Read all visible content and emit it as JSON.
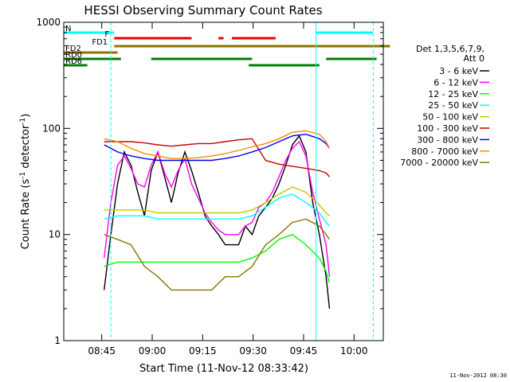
{
  "chart_data": {
    "type": "line",
    "title": "HESSI Observing Summary Count Rates",
    "xlabel": "Start Time (11-Nov-12 08:33:42)",
    "ylabel_main": "Count Rate (s",
    "ylabel_sup1": "-1",
    "ylabel_mid": " detector",
    "ylabel_sup2": "-1",
    "ylabel_end": ")",
    "y_scale": "log",
    "ylim": [
      1,
      1000
    ],
    "xlim_minutes": [
      0,
      95
    ],
    "x_ticks": [
      {
        "minute": 11.3,
        "label": "08:45"
      },
      {
        "minute": 26.3,
        "label": "09:00"
      },
      {
        "minute": 41.3,
        "label": "09:15"
      },
      {
        "minute": 56.3,
        "label": "09:30"
      },
      {
        "minute": 71.3,
        "label": "09:45"
      },
      {
        "minute": 86.3,
        "label": "10:00"
      }
    ],
    "y_ticks": [
      {
        "value": 1,
        "label": "1"
      },
      {
        "value": 10,
        "label": "10"
      },
      {
        "value": 100,
        "label": "100"
      },
      {
        "value": 1000,
        "label": "1000"
      }
    ],
    "legend_header": [
      "Det 1,3,5,6,7,9,",
      "Att 0"
    ],
    "legend_position": "right",
    "series": [
      {
        "name": "3 - 6 keV",
        "color": "#000000",
        "x": [
          12,
          14,
          16,
          18,
          20,
          22,
          24,
          26,
          28,
          30,
          32,
          34,
          36,
          38,
          40,
          42,
          44,
          46,
          48,
          50,
          52,
          54,
          56,
          58,
          60,
          62,
          64,
          66,
          68,
          70,
          72,
          74,
          76,
          78,
          79
        ],
        "y": [
          3,
          10,
          30,
          60,
          45,
          25,
          15,
          40,
          60,
          35,
          20,
          38,
          60,
          40,
          25,
          15,
          12,
          10,
          8,
          8,
          8,
          12,
          10,
          15,
          18,
          22,
          30,
          45,
          70,
          85,
          60,
          20,
          10,
          4,
          2
        ]
      },
      {
        "name": "6 - 12 keV",
        "color": "#ff00ff",
        "x": [
          12,
          14,
          16,
          18,
          20,
          22,
          24,
          26,
          28,
          30,
          32,
          34,
          36,
          38,
          40,
          42,
          44,
          46,
          48,
          50,
          52,
          54,
          56,
          58,
          60,
          62,
          64,
          66,
          68,
          70,
          72,
          74,
          76,
          78,
          79
        ],
        "y": [
          6,
          20,
          45,
          55,
          42,
          30,
          28,
          45,
          60,
          38,
          28,
          40,
          52,
          30,
          22,
          16,
          13,
          11,
          10,
          10,
          10,
          12,
          13,
          18,
          20,
          25,
          35,
          50,
          65,
          75,
          55,
          25,
          14,
          8,
          4
        ]
      },
      {
        "name": "12 - 25 keV",
        "color": "#00ff00",
        "x": [
          12,
          16,
          20,
          24,
          28,
          32,
          36,
          40,
          44,
          48,
          52,
          56,
          60,
          64,
          68,
          72,
          76,
          78,
          79
        ],
        "y": [
          5,
          5.5,
          5.5,
          5.5,
          5.5,
          5.5,
          5.5,
          5.5,
          5.5,
          5.5,
          5.5,
          6,
          7,
          9,
          10,
          8,
          6,
          4.5,
          3.5
        ]
      },
      {
        "name": "25 - 50 keV",
        "color": "#00ffff",
        "x": [
          12,
          16,
          20,
          24,
          28,
          32,
          36,
          40,
          44,
          48,
          52,
          56,
          60,
          64,
          68,
          72,
          76,
          78,
          79
        ],
        "y": [
          14,
          15,
          15,
          15,
          14,
          14,
          14,
          14,
          14,
          14,
          14,
          15,
          18,
          22,
          24,
          20,
          16,
          13,
          12
        ]
      },
      {
        "name": "50 - 100 keV",
        "color": "#c8c800",
        "x": [
          12,
          16,
          20,
          24,
          28,
          32,
          36,
          40,
          44,
          48,
          52,
          56,
          60,
          64,
          68,
          72,
          76,
          78,
          79
        ],
        "y": [
          17,
          17,
          17,
          17,
          16,
          16,
          16,
          16,
          16,
          16,
          16,
          17,
          20,
          24,
          28,
          25,
          19,
          16,
          15
        ]
      },
      {
        "name": "100 - 300 keV",
        "color": "#cc0000",
        "x": [
          12,
          16,
          20,
          24,
          28,
          32,
          36,
          40,
          44,
          48,
          52,
          56,
          60,
          64,
          68,
          72,
          76,
          78,
          79
        ],
        "y": [
          75,
          75,
          75,
          73,
          70,
          68,
          70,
          72,
          72,
          75,
          78,
          80,
          50,
          46,
          44,
          42,
          40,
          38,
          35
        ]
      },
      {
        "name": "300 - 800 keV",
        "color": "#0000ff",
        "x": [
          12,
          16,
          20,
          24,
          28,
          32,
          36,
          40,
          44,
          48,
          52,
          56,
          60,
          64,
          68,
          72,
          76,
          78,
          79
        ],
        "y": [
          70,
          60,
          55,
          52,
          50,
          50,
          50,
          50,
          50,
          52,
          55,
          60,
          66,
          75,
          85,
          88,
          80,
          72,
          65
        ]
      },
      {
        "name": "800 - 7000 keV",
        "color": "#ff8c00",
        "x": [
          12,
          16,
          20,
          24,
          28,
          32,
          36,
          40,
          44,
          48,
          52,
          56,
          60,
          64,
          68,
          72,
          76,
          78,
          79
        ],
        "y": [
          80,
          75,
          65,
          58,
          55,
          52,
          52,
          53,
          55,
          58,
          62,
          67,
          72,
          80,
          92,
          95,
          88,
          75,
          65
        ]
      },
      {
        "name": "7000 - 20000 keV",
        "color": "#8b7500",
        "x": [
          12,
          16,
          20,
          24,
          28,
          32,
          36,
          40,
          44,
          48,
          52,
          56,
          60,
          64,
          68,
          72,
          76,
          78,
          79
        ],
        "y": [
          10,
          9,
          8,
          5,
          4,
          3,
          3,
          3,
          3,
          4,
          4,
          5,
          8,
          10,
          13,
          14,
          12,
          10,
          9
        ]
      }
    ],
    "markers": [
      {
        "label": "N",
        "color": "#00ffff",
        "segments": [
          [
            0,
            15
          ],
          [
            75,
            92
          ]
        ]
      },
      {
        "label": "F",
        "color": "#e80000",
        "segments": [
          [
            15,
            38
          ],
          [
            46,
            47.5
          ],
          [
            50,
            63
          ]
        ]
      },
      {
        "label": "FD1",
        "color": "#8b7500",
        "segments": [
          [
            15,
            97
          ]
        ]
      },
      {
        "label": "FD2",
        "color": "#8b7500",
        "segments": [
          [
            0,
            16
          ]
        ]
      },
      {
        "label": "RD0",
        "color": "#008000",
        "segments": [
          [
            0,
            17
          ],
          [
            26,
            56
          ],
          [
            78,
            93
          ]
        ]
      },
      {
        "label": "RD6",
        "color": "#008000",
        "segments": [
          [
            0,
            7
          ],
          [
            55,
            76
          ]
        ]
      }
    ],
    "vlines_solid": [
      0,
      75
    ],
    "vlines_dashed": [
      14,
      92
    ]
  },
  "footer": "11-Nov-2012 08:30"
}
